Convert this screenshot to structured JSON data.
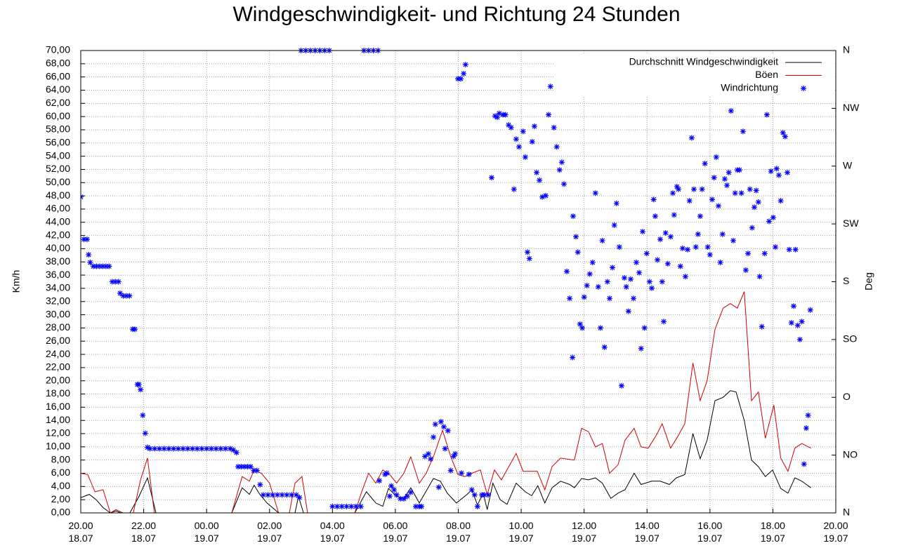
{
  "chart_data": {
    "type": "line",
    "title": "Windgeschwindigkeit- und Richtung 24 Stunden",
    "ylabel": "Km/h",
    "y2label": "Deg",
    "grid": true,
    "legend": "upper right",
    "xlim": [
      0,
      24
    ],
    "xticks": [
      {
        "value": 0,
        "label": "20.00\n18.07"
      },
      {
        "value": 2,
        "label": "22.00\n18.07"
      },
      {
        "value": 4,
        "label": "00.00\n19.07"
      },
      {
        "value": 6,
        "label": "02.00\n19.07"
      },
      {
        "value": 8,
        "label": "04.00\n19.07"
      },
      {
        "value": 10,
        "label": "06.00\n19.07"
      },
      {
        "value": 12,
        "label": "08.00\n19.07"
      },
      {
        "value": 14,
        "label": "10.00\n19.07"
      },
      {
        "value": 16,
        "label": "12.00\n19.07"
      },
      {
        "value": 18,
        "label": "14.00\n19.07"
      },
      {
        "value": 20,
        "label": "16.00\n19.07"
      },
      {
        "value": 22,
        "label": "18.00\n19.07"
      },
      {
        "value": 24,
        "label": "20.00\n19.07"
      }
    ],
    "ylim": [
      0,
      70
    ],
    "yticks": [
      {
        "value": 0,
        "label": "0,00"
      },
      {
        "value": 2,
        "label": "2,00"
      },
      {
        "value": 4,
        "label": "4,00"
      },
      {
        "value": 6,
        "label": "6,00"
      },
      {
        "value": 8,
        "label": "8,00"
      },
      {
        "value": 10,
        "label": "10,00"
      },
      {
        "value": 12,
        "label": "12,00"
      },
      {
        "value": 14,
        "label": "14,00"
      },
      {
        "value": 16,
        "label": "16,00"
      },
      {
        "value": 18,
        "label": "18,00"
      },
      {
        "value": 20,
        "label": "20,00"
      },
      {
        "value": 22,
        "label": "22,00"
      },
      {
        "value": 24,
        "label": "24,00"
      },
      {
        "value": 26,
        "label": "26,00"
      },
      {
        "value": 28,
        "label": "28,00"
      },
      {
        "value": 30,
        "label": "30,00"
      },
      {
        "value": 32,
        "label": "32,00"
      },
      {
        "value": 34,
        "label": "34,00"
      },
      {
        "value": 36,
        "label": "36,00"
      },
      {
        "value": 38,
        "label": "38,00"
      },
      {
        "value": 40,
        "label": "40,00"
      },
      {
        "value": 42,
        "label": "42,00"
      },
      {
        "value": 44,
        "label": "44,00"
      },
      {
        "value": 46,
        "label": "46,00"
      },
      {
        "value": 48,
        "label": "48,00"
      },
      {
        "value": 50,
        "label": "50,00"
      },
      {
        "value": 52,
        "label": "52,00"
      },
      {
        "value": 54,
        "label": "54,00"
      },
      {
        "value": 56,
        "label": "56,00"
      },
      {
        "value": 58,
        "label": "58,00"
      },
      {
        "value": 60,
        "label": "60,00"
      },
      {
        "value": 62,
        "label": "62,00"
      },
      {
        "value": 64,
        "label": "64,00"
      },
      {
        "value": 66,
        "label": "66,00"
      },
      {
        "value": 68,
        "label": "68,00"
      },
      {
        "value": 70,
        "label": "70,00"
      }
    ],
    "y2lim": [
      0,
      360
    ],
    "y2ticks": [
      {
        "value": 0,
        "label": "N"
      },
      {
        "value": 45,
        "label": "NO"
      },
      {
        "value": 90,
        "label": "O"
      },
      {
        "value": 135,
        "label": "SO"
      },
      {
        "value": 180,
        "label": "S"
      },
      {
        "value": 225,
        "label": "SW"
      },
      {
        "value": 270,
        "label": "W"
      },
      {
        "value": 315,
        "label": "NW"
      },
      {
        "value": 360,
        "label": "N"
      }
    ],
    "series": [
      {
        "name": "Durchschnitt Windgeschwindigkeit",
        "color": "#000000",
        "type": "line",
        "x": [
          0,
          0.27,
          0.49,
          0.71,
          0.94,
          1.12,
          1.27,
          1.56,
          1.85,
          2.12,
          2.39,
          4.8,
          5.13,
          5.36,
          5.51,
          5.69,
          5.92,
          6.29,
          6.81,
          6.92,
          7.08,
          8.71,
          9.08,
          9.38,
          9.6,
          9.78,
          10.04,
          10.27,
          10.49,
          10.76,
          11.21,
          11.43,
          11.65,
          11.94,
          12.28,
          12.43,
          12.61,
          12.79,
          12.92,
          13.1,
          13.33,
          13.55,
          13.84,
          14.13,
          14.33,
          14.53,
          14.75,
          14.98,
          15.25,
          15.54,
          15.69,
          15.92,
          16.14,
          16.36,
          16.58,
          16.85,
          17.08,
          17.3,
          17.59,
          17.81,
          18.15,
          18.42,
          18.71,
          18.93,
          19.2,
          19.46,
          19.69,
          19.91,
          20.16,
          20.42,
          20.65,
          20.83,
          21.09,
          21.32,
          21.54,
          21.76,
          21.99,
          22.25,
          22.48,
          22.7,
          22.92,
          23.21
        ],
        "values": [
          2.3,
          2.8,
          2.0,
          0.8,
          0,
          0.3,
          0,
          0,
          2.5,
          5.3,
          0,
          0,
          3.8,
          2.8,
          4.2,
          2.8,
          1.5,
          0,
          0,
          2.5,
          0,
          0,
          3.2,
          1.5,
          1.0,
          3.7,
          2.5,
          2.2,
          3.8,
          1.5,
          5.2,
          4.8,
          3.0,
          1.5,
          2.8,
          3.5,
          1.2,
          3.0,
          0.5,
          4.5,
          2.0,
          1.3,
          4.5,
          3.2,
          2.6,
          4.1,
          1.5,
          3.8,
          4.8,
          4.3,
          3.8,
          5.2,
          5.0,
          5.3,
          4.5,
          2.2,
          3.0,
          3.5,
          6.0,
          4.3,
          4.8,
          4.8,
          4.3,
          5.3,
          5.8,
          12.0,
          8.2,
          11.0,
          17.0,
          17.5,
          18.5,
          18.3,
          14.0,
          8.0,
          7.0,
          5.5,
          6.5,
          3.7,
          3.0,
          5.3,
          4.8,
          3.8
        ]
      },
      {
        "name": "Böen",
        "color": "#cc0000",
        "type": "line",
        "x": [
          0,
          0.22,
          0.45,
          0.71,
          0.94,
          1.12,
          1.34,
          1.67,
          1.9,
          2.12,
          2.34,
          4.8,
          5.13,
          5.36,
          5.51,
          5.74,
          6.0,
          6.29,
          6.63,
          6.81,
          7.03,
          7.21,
          8.71,
          8.93,
          9.15,
          9.38,
          9.6,
          9.82,
          10.04,
          10.27,
          10.49,
          10.76,
          10.98,
          11.21,
          11.5,
          11.76,
          11.99,
          12.21,
          12.43,
          12.7,
          12.92,
          13.15,
          13.37,
          13.84,
          14.06,
          14.51,
          14.75,
          14.98,
          15.25,
          15.69,
          15.92,
          16.14,
          16.36,
          16.58,
          16.81,
          17.08,
          17.3,
          17.59,
          17.81,
          18.04,
          18.3,
          18.48,
          18.75,
          18.97,
          19.2,
          19.46,
          19.69,
          19.91,
          20.16,
          20.42,
          20.65,
          20.87,
          21.09,
          21.32,
          21.54,
          21.76,
          22.03,
          22.25,
          22.48,
          22.7,
          22.92,
          23.21
        ],
        "values": [
          6.0,
          5.8,
          3.2,
          3.5,
          0,
          0.5,
          0,
          0,
          5.0,
          8.3,
          0,
          0,
          5.5,
          4.8,
          6.5,
          6.0,
          4.5,
          0,
          0,
          4.5,
          5.5,
          0,
          0,
          3.2,
          6.0,
          4.5,
          6.5,
          5.8,
          4.5,
          6.0,
          8.5,
          4.5,
          6.0,
          8.5,
          12.5,
          8.5,
          5.8,
          5.5,
          6.0,
          6.5,
          2.8,
          6.5,
          5.0,
          9.0,
          6.3,
          6.3,
          3.5,
          7.0,
          8.3,
          8.0,
          12.8,
          12.3,
          10.0,
          10.5,
          6.0,
          7.3,
          11.0,
          12.8,
          10.0,
          9.8,
          11.8,
          13.5,
          9.8,
          11.5,
          13.5,
          22.7,
          17.0,
          20.0,
          27.8,
          31.0,
          31.7,
          31.0,
          33.5,
          17.0,
          18.3,
          11.3,
          16.3,
          8.3,
          6.3,
          9.8,
          10.5,
          9.8
        ]
      },
      {
        "name": "Windrichtung",
        "color": "#0000ff",
        "type": "scatter",
        "axis": "y2",
        "x": [
          0,
          0.1,
          0.2,
          0.25,
          0.3,
          0.4,
          0.5,
          0.6,
          0.7,
          0.8,
          0.9,
          1.0,
          1.1,
          1.2,
          1.25,
          1.35,
          1.45,
          1.55,
          1.65,
          1.72,
          1.8,
          1.85,
          1.9,
          1.97,
          2.05,
          2.12,
          2.2,
          2.35,
          2.5,
          2.65,
          2.8,
          2.95,
          3.1,
          3.25,
          3.4,
          3.55,
          3.7,
          3.85,
          4.0,
          4.15,
          4.3,
          4.45,
          4.6,
          4.75,
          4.85,
          4.95,
          5.0,
          5.1,
          5.2,
          5.3,
          5.4,
          5.5,
          5.6,
          5.7,
          5.8,
          5.95,
          6.1,
          6.25,
          6.4,
          6.55,
          6.7,
          6.85,
          6.95,
          7.0,
          7.15,
          7.3,
          7.45,
          7.6,
          7.75,
          7.9,
          8.0,
          8.15,
          8.3,
          8.45,
          8.6,
          8.75,
          8.9,
          9.0,
          9.15,
          9.3,
          9.45,
          9.49,
          9.67,
          9.73,
          9.82,
          9.87,
          9.96,
          10.04,
          10.16,
          10.27,
          10.38,
          10.49,
          10.65,
          10.76,
          10.83,
          10.94,
          11.05,
          11.12,
          11.21,
          11.27,
          11.38,
          11.45,
          11.54,
          11.58,
          11.67,
          11.76,
          11.85,
          11.9,
          11.99,
          12.08,
          12.1,
          12.17,
          12.23,
          12.34,
          12.43,
          12.52,
          12.61,
          12.75,
          12.83,
          12.95,
          13.06,
          13.17,
          13.24,
          13.3,
          13.42,
          13.5,
          13.6,
          13.68,
          13.77,
          13.84,
          13.93,
          14.06,
          14.13,
          14.2,
          14.26,
          14.35,
          14.42,
          14.49,
          14.58,
          14.67,
          14.78,
          14.87,
          14.93,
          15.04,
          15.13,
          15.22,
          15.29,
          15.36,
          15.45,
          15.54,
          15.63,
          15.65,
          15.74,
          15.8,
          15.87,
          15.94,
          16.0,
          16.09,
          16.18,
          16.27,
          16.36,
          16.45,
          16.52,
          16.58,
          16.65,
          16.74,
          16.81,
          16.9,
          16.96,
          17.03,
          17.12,
          17.19,
          17.28,
          17.34,
          17.41,
          17.48,
          17.57,
          17.66,
          17.75,
          17.81,
          17.86,
          17.92,
          17.99,
          18.08,
          18.15,
          18.21,
          18.26,
          18.33,
          18.42,
          18.48,
          18.53,
          18.59,
          18.66,
          18.75,
          18.82,
          18.86,
          18.95,
          19.0,
          19.06,
          19.13,
          19.22,
          19.29,
          19.35,
          19.42,
          19.49,
          19.55,
          19.62,
          19.69,
          19.75,
          19.84,
          19.93,
          20.0,
          20.07,
          20.13,
          20.2,
          20.27,
          20.33,
          20.4,
          20.47,
          20.54,
          20.6,
          20.67,
          20.74,
          20.8,
          20.87,
          20.94,
          21.0,
          21.05,
          21.14,
          21.21,
          21.27,
          21.34,
          21.41,
          21.47,
          21.54,
          21.58,
          21.65,
          21.74,
          21.81,
          21.88,
          21.94,
          22.01,
          22.08,
          22.12,
          22.19,
          22.25,
          22.32,
          22.39,
          22.46,
          22.52,
          22.59,
          22.66,
          22.72,
          22.79,
          22.86,
          22.92,
          22.99,
          23.06,
          23.12,
          23.19
        ],
        "values": [
          246,
          213,
          213,
          201,
          195,
          192,
          192,
          192,
          192,
          192,
          192,
          180,
          180,
          180,
          171,
          169,
          169,
          169,
          143,
          143,
          100,
          100,
          96,
          76,
          62,
          51,
          50,
          50,
          50,
          50,
          50,
          50,
          50,
          50,
          50,
          50,
          50,
          50,
          50,
          50,
          50,
          50,
          50,
          50,
          49,
          47,
          36,
          36,
          36,
          36,
          36,
          33,
          33,
          22,
          14,
          14,
          14,
          14,
          14,
          14,
          14,
          14,
          12,
          360,
          360,
          360,
          360,
          360,
          360,
          360,
          5,
          5,
          5,
          5,
          5,
          5,
          5,
          360,
          360,
          360,
          360,
          25,
          30,
          31,
          13,
          21,
          18,
          14,
          11,
          11,
          13,
          16,
          5,
          5,
          5,
          44,
          46,
          42,
          59,
          69,
          20,
          71,
          67,
          50,
          64,
          33,
          44,
          46,
          338,
          338,
          31,
          342,
          349,
          30,
          18,
          14,
          5,
          14,
          14,
          14,
          261,
          309,
          308,
          311,
          310,
          310,
          302,
          300,
          252,
          291,
          285,
          297,
          277,
          203,
          198,
          289,
          301,
          265,
          259,
          246,
          247,
          310,
          332,
          300,
          285,
          267,
          273,
          256,
          188,
          167,
          121,
          231,
          215,
          203,
          147,
          144,
          168,
          177,
          186,
          195,
          249,
          176,
          144,
          212,
          129,
          180,
          167,
          191,
          224,
          241,
          207,
          99,
          183,
          176,
          157,
          182,
          167,
          195,
          187,
          128,
          219,
          144,
          202,
          180,
          175,
          244,
          231,
          197,
          213,
          180,
          149,
          218,
          194,
          215,
          249,
          232,
          254,
          252,
          192,
          206,
          184,
          205,
          243,
          292,
          252,
          207,
          217,
          231,
          252,
          272,
          207,
          201,
          244,
          261,
          277,
          239,
          195,
          217,
          260,
          255,
          265,
          313,
          212,
          249,
          267,
          267,
          249,
          297,
          189,
          202,
          252,
          222,
          238,
          251,
          242,
          184,
          145,
          202,
          310,
          227,
          266,
          230,
          207,
          268,
          263,
          243,
          296,
          293,
          265,
          205,
          148,
          161,
          205,
          146,
          135,
          149,
          38,
          66,
          76,
          158
        ]
      }
    ]
  }
}
